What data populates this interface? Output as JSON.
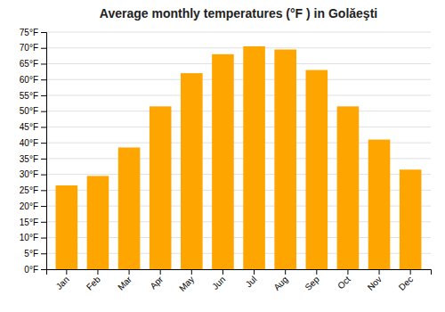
{
  "chart_data": {
    "type": "bar",
    "title": "Average monthly temperatures (°F ) in Golăeşti",
    "categories": [
      "Jan",
      "Feb",
      "Mar",
      "Apr",
      "May",
      "Jun",
      "Jul",
      "Aug",
      "Sep",
      "Oct",
      "Nov",
      "Dec"
    ],
    "values": [
      26.5,
      29.5,
      38.5,
      51.5,
      62.0,
      68.0,
      70.5,
      69.5,
      63.0,
      51.5,
      41.0,
      31.5
    ],
    "color": "#FFA500",
    "ylim": [
      0,
      75
    ],
    "yticks": [
      {
        "value": 0,
        "label": "0°F"
      },
      {
        "value": 5,
        "label": "5°F"
      },
      {
        "value": 10,
        "label": "10°F"
      },
      {
        "value": 15,
        "label": "15°F"
      },
      {
        "value": 20,
        "label": "20°F"
      },
      {
        "value": 25,
        "label": "25°F"
      },
      {
        "value": 30,
        "label": "30°F"
      },
      {
        "value": 35,
        "label": "35°F"
      },
      {
        "value": 40,
        "label": "40°F"
      },
      {
        "value": 45,
        "label": "45°F"
      },
      {
        "value": 50,
        "label": "50°F"
      },
      {
        "value": 55,
        "label": "55°F"
      },
      {
        "value": 60,
        "label": "60°F"
      },
      {
        "value": 65,
        "label": "65°F"
      },
      {
        "value": 70,
        "label": "70°F"
      },
      {
        "value": 75,
        "label": "75°F"
      }
    ],
    "grid": true
  }
}
